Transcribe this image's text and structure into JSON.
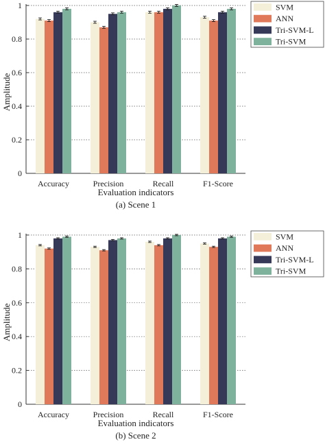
{
  "chart_data": [
    {
      "type": "bar",
      "caption": "(a) Scene 1",
      "categories": [
        "Accuracy",
        "Precision",
        "Recall",
        "F1-Score"
      ],
      "series": [
        {
          "name": "SVM",
          "color": "#f4efd8",
          "values": [
            0.92,
            0.9,
            0.96,
            0.93
          ],
          "errors": [
            0.006,
            0.006,
            0.006,
            0.006
          ]
        },
        {
          "name": "ANN",
          "color": "#e0785a",
          "values": [
            0.91,
            0.87,
            0.96,
            0.91
          ],
          "errors": [
            0.006,
            0.006,
            0.006,
            0.006
          ]
        },
        {
          "name": "Tri-SVM-L",
          "color": "#363a58",
          "values": [
            0.96,
            0.95,
            0.98,
            0.96
          ],
          "errors": [
            0.006,
            0.006,
            0.006,
            0.006
          ]
        },
        {
          "name": "Tri-SVM",
          "color": "#7fb29c",
          "values": [
            0.98,
            0.96,
            1.0,
            0.98
          ],
          "errors": [
            0.006,
            0.006,
            0.006,
            0.006
          ]
        }
      ],
      "xlabel": "Evaluation indicators",
      "ylabel": "Amplitude",
      "ylim": [
        0,
        1
      ],
      "yticks": [
        0,
        0.2,
        0.4,
        0.6,
        0.8,
        1
      ],
      "ytick_labels": [
        "0",
        "0.2",
        "0.4",
        "0.6",
        "0.8",
        "1"
      ],
      "legend": "top-right, outside"
    },
    {
      "type": "bar",
      "caption": "(b) Scene 2",
      "categories": [
        "Accuracy",
        "Precision",
        "Recall",
        "F1-Score"
      ],
      "series": [
        {
          "name": "SVM",
          "color": "#f4efd8",
          "values": [
            0.94,
            0.93,
            0.96,
            0.95
          ],
          "errors": [
            0.004,
            0.004,
            0.004,
            0.004
          ]
        },
        {
          "name": "ANN",
          "color": "#e0785a",
          "values": [
            0.92,
            0.91,
            0.94,
            0.93
          ],
          "errors": [
            0.004,
            0.004,
            0.004,
            0.004
          ]
        },
        {
          "name": "Tri-SVM-L",
          "color": "#363a58",
          "values": [
            0.98,
            0.97,
            0.98,
            0.98
          ],
          "errors": [
            0.004,
            0.004,
            0.004,
            0.004
          ]
        },
        {
          "name": "Tri-SVM",
          "color": "#7fb29c",
          "values": [
            0.99,
            0.98,
            1.0,
            0.99
          ],
          "errors": [
            0.004,
            0.004,
            0.004,
            0.004
          ]
        }
      ],
      "xlabel": "Evaluation indicators",
      "ylabel": "Amplitude",
      "ylim": [
        0,
        1
      ],
      "yticks": [
        0,
        0.2,
        0.4,
        0.6,
        0.8,
        1
      ],
      "ytick_labels": [
        "0",
        "0.2",
        "0.4",
        "0.6",
        "0.8",
        "1"
      ],
      "legend": "top-right, outside"
    }
  ]
}
